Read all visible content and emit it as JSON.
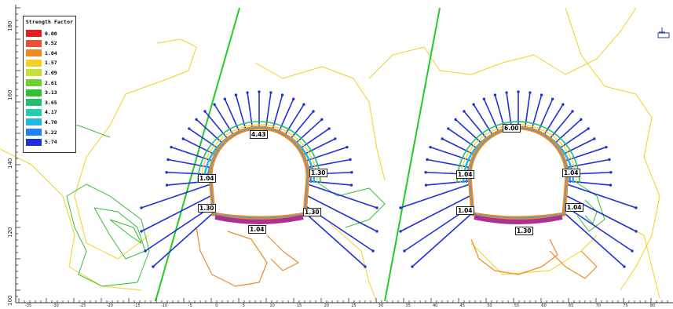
{
  "legend": {
    "title": "Strength Factor",
    "entries": [
      {
        "value": "0.00",
        "color": "#e02020"
      },
      {
        "value": "0.52",
        "color": "#e8503a"
      },
      {
        "value": "1.04",
        "color": "#f08a20"
      },
      {
        "value": "1.57",
        "color": "#f4d020"
      },
      {
        "value": "2.09",
        "color": "#c8e030"
      },
      {
        "value": "2.61",
        "color": "#70d030"
      },
      {
        "value": "3.13",
        "color": "#30c030"
      },
      {
        "value": "3.65",
        "color": "#20c070"
      },
      {
        "value": "4.17",
        "color": "#20d0b0"
      },
      {
        "value": "4.70",
        "color": "#20b8e0"
      },
      {
        "value": "5.22",
        "color": "#2080f0"
      },
      {
        "value": "5.74",
        "color": "#2030d8"
      }
    ]
  },
  "y_axis_labels": [
    "180",
    "160",
    "140",
    "120",
    "100"
  ],
  "x_axis_labels": [
    "-35",
    "-30",
    "-25",
    "-20",
    "-15",
    "-10",
    "-5",
    "0",
    "5",
    "10",
    "15",
    "20",
    "25",
    "30",
    "35",
    "40",
    "45",
    "50",
    "55",
    "60",
    "65",
    "70",
    "75",
    "80"
  ],
  "tunnel_left": {
    "labels": {
      "crown": "4.43",
      "left_wall": "1.04",
      "right_wall": "1.30",
      "left_base": "1.30",
      "right_base": "1.30",
      "invert": "1.04"
    }
  },
  "tunnel_right": {
    "labels": {
      "crown": "6.00",
      "left_wall": "1.04",
      "right_wall": "1.04",
      "left_base": "1.04",
      "right_base": "1.04",
      "invert": "1.30"
    }
  },
  "colors": {
    "bolt": "#2030d8",
    "fault": "#22cc22",
    "contour_orange": "#f08a20",
    "contour_yellow": "#f4d020",
    "contour_green": "#30c030",
    "liner": "#b03090"
  },
  "icon": "ground-surface-icon"
}
